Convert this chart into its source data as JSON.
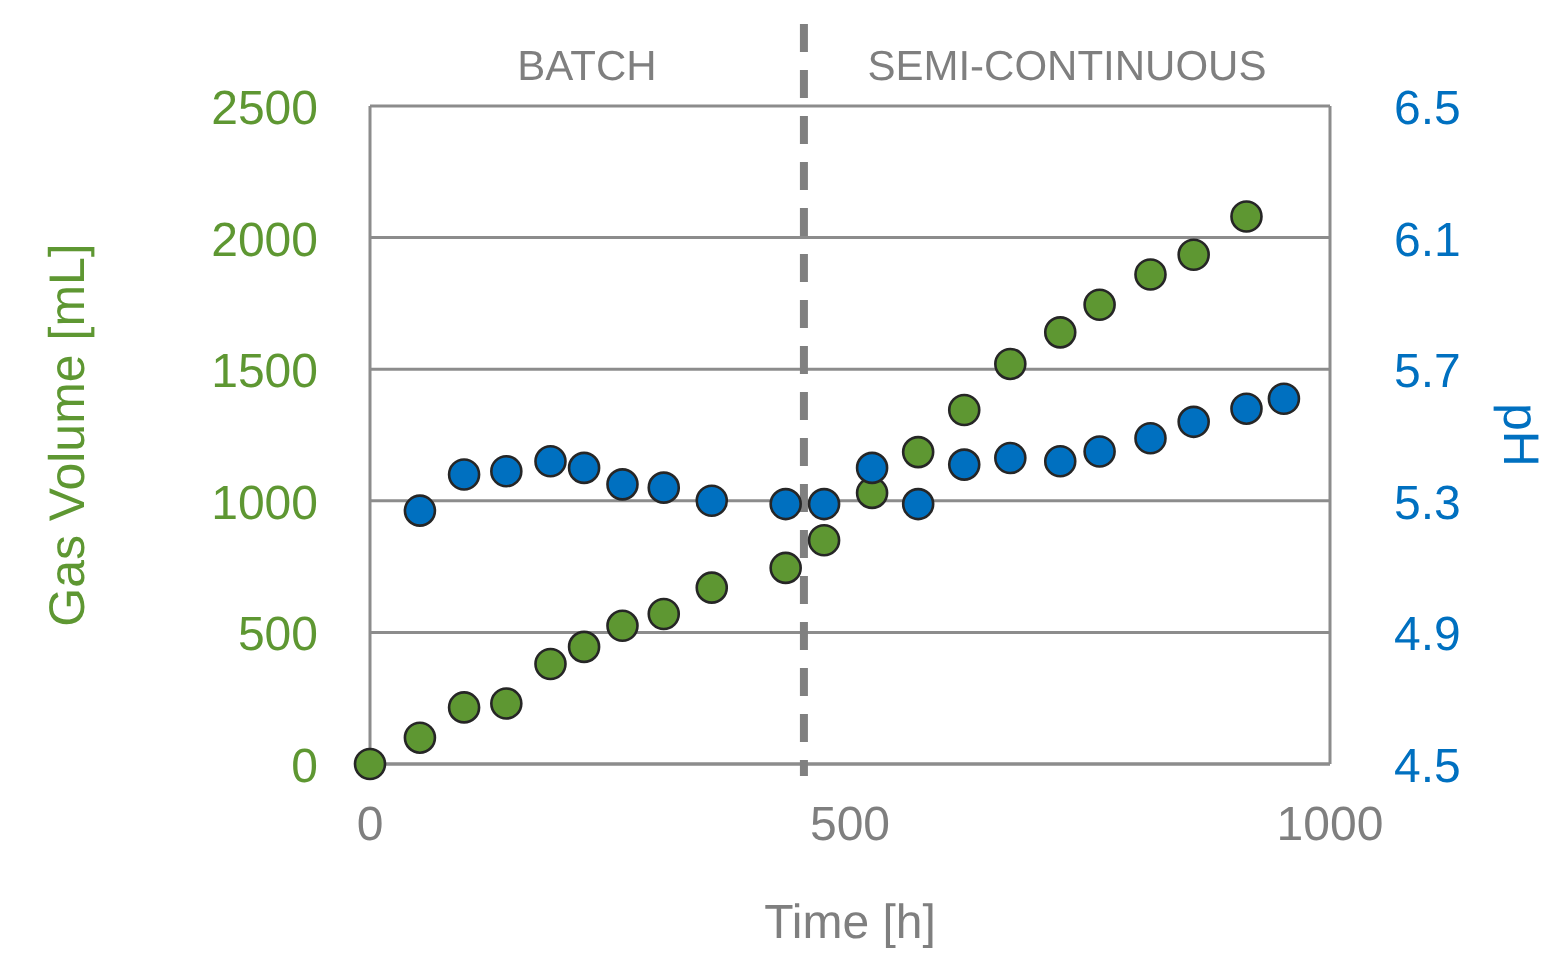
{
  "chart_data": {
    "type": "scatter",
    "xlabel": "Time [h]",
    "ylabel": "Gas Volume [mL]",
    "y2label": "pH",
    "xlim": [
      0,
      1000
    ],
    "xticks": [
      0,
      500,
      1000
    ],
    "ylim": [
      0,
      2500
    ],
    "yticks": [
      0,
      500,
      1000,
      1500,
      2000,
      2500
    ],
    "y2lim": [
      4.5,
      6.5
    ],
    "y2ticks": [
      4.5,
      4.9,
      5.3,
      5.7,
      6.1,
      6.5
    ],
    "grid": "y",
    "marker": "circle",
    "series": [
      {
        "color": "#5e9732",
        "x": [
          0,
          52,
          98,
          142,
          188,
          223,
          263,
          306,
          356,
          433,
          473,
          523,
          571,
          619,
          667,
          719,
          760,
          813,
          858,
          913
        ],
        "values": [
          0,
          100,
          215,
          230,
          380,
          445,
          525,
          570,
          670,
          745,
          850,
          1030,
          1185,
          1345,
          1520,
          1640,
          1745,
          1860,
          1935,
          2080
        ]
      },
      {
        "color": "#0070c0",
        "axis": "y2",
        "x": [
          52,
          98,
          142,
          188,
          223,
          263,
          306,
          356,
          433,
          473,
          523,
          571,
          619,
          667,
          719,
          760,
          813,
          858,
          913,
          952
        ],
        "values": [
          5.27,
          5.38,
          5.39,
          5.42,
          5.4,
          5.35,
          5.34,
          5.3,
          5.29,
          5.29,
          5.4,
          5.29,
          5.41,
          5.43,
          5.42,
          5.45,
          5.49,
          5.54,
          5.58,
          5.61
        ]
      }
    ],
    "ref_lines": [
      {
        "axis": "x",
        "value": 452,
        "color": "#808080",
        "line_style": "dashed"
      }
    ],
    "annotations": [
      "BATCH",
      "SEMI-CONTINUOUS"
    ]
  }
}
